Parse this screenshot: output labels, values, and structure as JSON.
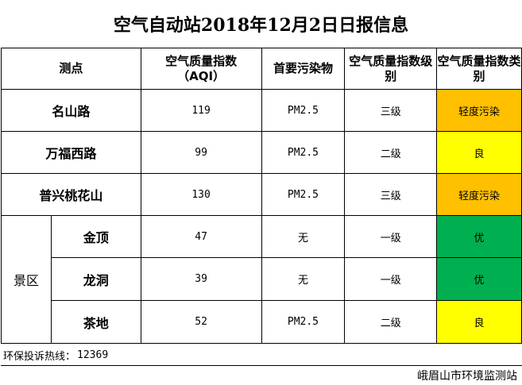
{
  "title": "空气自动站2018年12月2日日报信息",
  "headers": {
    "station": "测点",
    "aqi_line1": "空气质量指数",
    "aqi_line2": "（AQI）",
    "pollutant": "首要污染物",
    "level": "空气质量指数级别",
    "category": "空气质量指数类别"
  },
  "scenic_label": "景区",
  "rows": [
    {
      "name": "名山路",
      "aqi": "119",
      "pollutant": "PM2.5",
      "level": "三级",
      "category": "轻度污染",
      "color": "#FFC000"
    },
    {
      "name": "万福西路",
      "aqi": "99",
      "pollutant": "PM2.5",
      "level": "二级",
      "category": "良",
      "color": "#FFFF00"
    },
    {
      "name": "普兴桃花山",
      "aqi": "130",
      "pollutant": "PM2.5",
      "level": "三级",
      "category": "轻度污染",
      "color": "#FFC000"
    },
    {
      "name": "金顶",
      "aqi": "47",
      "pollutant": "无",
      "level": "一级",
      "category": "优",
      "color": "#00B050"
    },
    {
      "name": "龙洞",
      "aqi": "39",
      "pollutant": "无",
      "level": "一级",
      "category": "优",
      "color": "#00B050"
    },
    {
      "name": "茶地",
      "aqi": "52",
      "pollutant": "PM2.5",
      "level": "二级",
      "category": "良",
      "color": "#FFFF00"
    }
  ],
  "footer": {
    "hotline_label": "环保投诉热线：",
    "hotline_number": "12369",
    "organization": "峨眉山市环境监测站"
  }
}
